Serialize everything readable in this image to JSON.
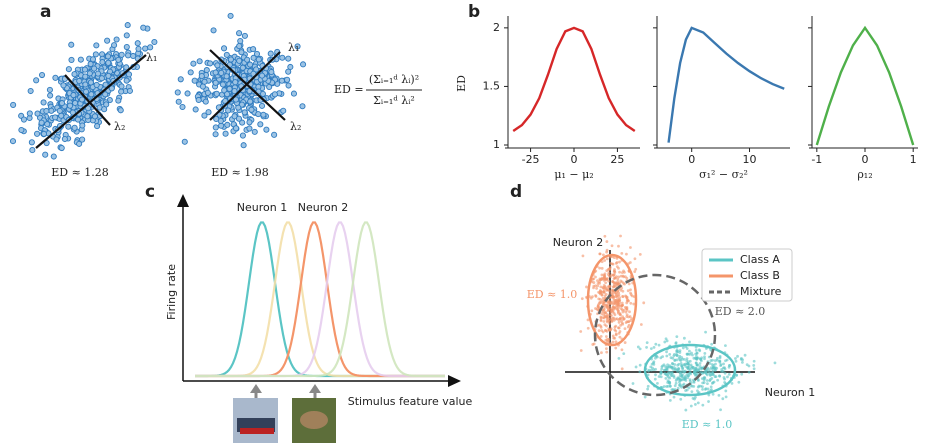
{
  "panel_a": {
    "label": "a",
    "lambda1": "λ₁",
    "lambda2": "λ₂",
    "ed_left": "ED ≈ 1.28",
    "ed_right": "ED ≈ 1.98",
    "formula_lhs": "ED =",
    "formula_num": "(Σᵢ₌₁ᵈ λᵢ)²",
    "formula_den": "Σᵢ₌₁ᵈ λᵢ²"
  },
  "panel_b": {
    "label": "b"
  },
  "chart_data": [
    {
      "type": "line",
      "ylabel": "ED",
      "xlabel": "μ₁ − μ₂",
      "color": "#d62728",
      "x": [
        -35,
        -30,
        -25,
        -20,
        -15,
        -10,
        -5,
        0,
        5,
        10,
        15,
        20,
        25,
        30,
        35
      ],
      "values": [
        1.12,
        1.17,
        1.26,
        1.4,
        1.6,
        1.82,
        1.97,
        2,
        1.97,
        1.82,
        1.6,
        1.4,
        1.26,
        1.17,
        1.12
      ],
      "xlim": [
        -38,
        38
      ],
      "xticks": [
        -25,
        0,
        25
      ],
      "ylim": [
        1,
        2.05
      ],
      "yticks": [
        1,
        1.5,
        2
      ]
    },
    {
      "type": "line",
      "xlabel": "σ₁² − σ₂²",
      "color": "#3a78b0",
      "x": [
        -4,
        -3,
        -2,
        -1,
        0,
        2,
        4,
        6,
        8,
        10,
        12,
        14,
        16
      ],
      "values": [
        1.02,
        1.4,
        1.7,
        1.9,
        2,
        1.96,
        1.87,
        1.78,
        1.7,
        1.63,
        1.57,
        1.52,
        1.48
      ],
      "xlim": [
        -6,
        17
      ],
      "xticks": [
        0,
        10
      ],
      "ylim": [
        1,
        2.05
      ],
      "yticks": [
        1,
        1.5,
        2
      ]
    },
    {
      "type": "line",
      "xlabel": "ρ₁₂",
      "color": "#4fb04a",
      "x": [
        -1,
        -0.75,
        -0.5,
        -0.25,
        0,
        0.25,
        0.5,
        0.75,
        1
      ],
      "values": [
        1,
        1.33,
        1.62,
        1.85,
        2,
        1.85,
        1.62,
        1.33,
        1
      ],
      "xlim": [
        -1.1,
        1.1
      ],
      "xticks": [
        -1,
        0,
        1
      ],
      "ylim": [
        1,
        2.05
      ],
      "yticks": [
        1,
        1.5,
        2
      ]
    }
  ],
  "panel_c": {
    "label": "c",
    "neuron1": "Neuron 1",
    "neuron2": "Neuron 2",
    "ylabel": "Firing rate",
    "xlabel": "Stimulus feature value"
  },
  "panel_d": {
    "label": "d",
    "yaxis": "Neuron 2",
    "xaxis": "Neuron 1",
    "legend": [
      "Class A",
      "Class B",
      "Mixture"
    ],
    "ed_b": "ED ≈ 1.0",
    "ed_mix": "ED ≈ 2.0",
    "ed_a": "ED ≈ 1.0"
  }
}
